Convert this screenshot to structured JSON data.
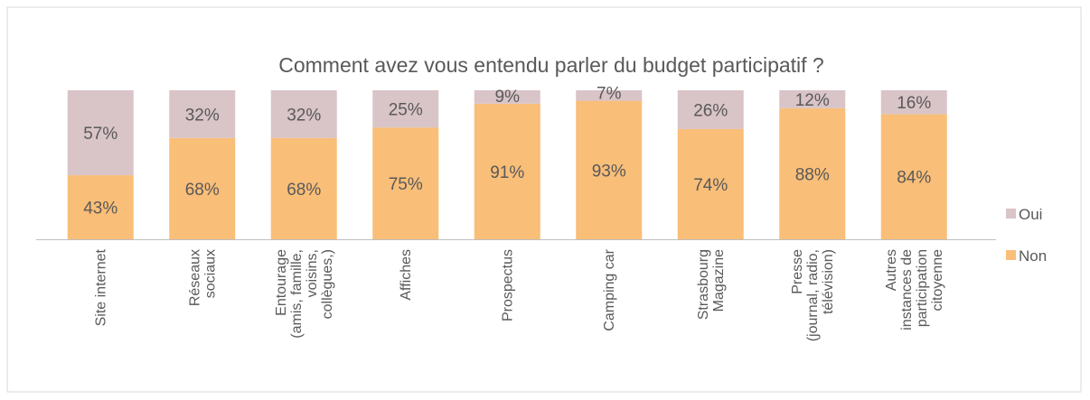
{
  "chart_data": {
    "type": "stacked_bar_100",
    "title": "Comment avez vous entendu parler du budget participatif ?",
    "categories": [
      "Site internet",
      "Réseaux\nsociaux",
      "Entourage\n(amis, famille,\nvoisins,\ncollègues,)",
      "Affiches",
      "Prospectus",
      "Camping car",
      "Strasbourg\nMagazine",
      "Presse\n(journal, radio,\ntélévision)",
      "Autres\ninstances de\nparticipation\ncitoyenne"
    ],
    "series": [
      {
        "name": "Non",
        "color": "#f9be78",
        "values": [
          43,
          68,
          68,
          75,
          91,
          93,
          74,
          88,
          84
        ],
        "value_labels": [
          "43%",
          "68%",
          "68%",
          "75%",
          "91%",
          "93%",
          "74%",
          "88%",
          "84%"
        ]
      },
      {
        "name": "Oui",
        "color": "#d9c4c8",
        "values": [
          57,
          32,
          32,
          25,
          9,
          7,
          26,
          12,
          16
        ],
        "value_labels": [
          "57%",
          "32%",
          "32%",
          "25%",
          "9%",
          "7%",
          "26%",
          "12%",
          "16%"
        ]
      }
    ]
  }
}
